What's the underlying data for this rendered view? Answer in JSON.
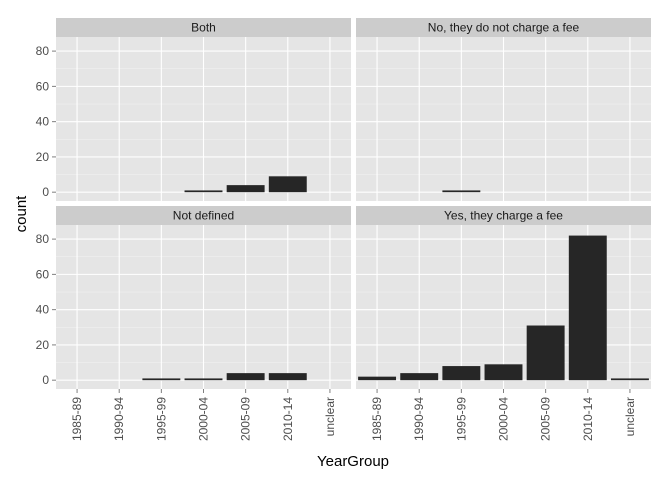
{
  "chart_data": {
    "type": "bar",
    "xlabel": "YearGroup",
    "ylabel": "count",
    "ylim": [
      -5,
      88
    ],
    "yticks": [
      0,
      20,
      40,
      60,
      80
    ],
    "categories": [
      "1985-89",
      "1990-94",
      "1995-99",
      "2000-04",
      "2005-09",
      "2010-14",
      "unclear"
    ],
    "facets": [
      {
        "title": "Both",
        "values": [
          0,
          0,
          0,
          1,
          4,
          9,
          0
        ]
      },
      {
        "title": "No, they do not charge a fee",
        "values": [
          0,
          0,
          1,
          0,
          0,
          0,
          0
        ]
      },
      {
        "title": "Not defined",
        "values": [
          0,
          0,
          1,
          1,
          4,
          4,
          0
        ]
      },
      {
        "title": "Yes, they charge a fee",
        "values": [
          2,
          4,
          8,
          9,
          31,
          82,
          1
        ]
      }
    ],
    "colors": {
      "panel_background": "#e5e5e5",
      "grid": "#ffffff",
      "strip_background": "#cccccc",
      "bar": "#262626"
    },
    "grid": true,
    "legend": "none"
  }
}
